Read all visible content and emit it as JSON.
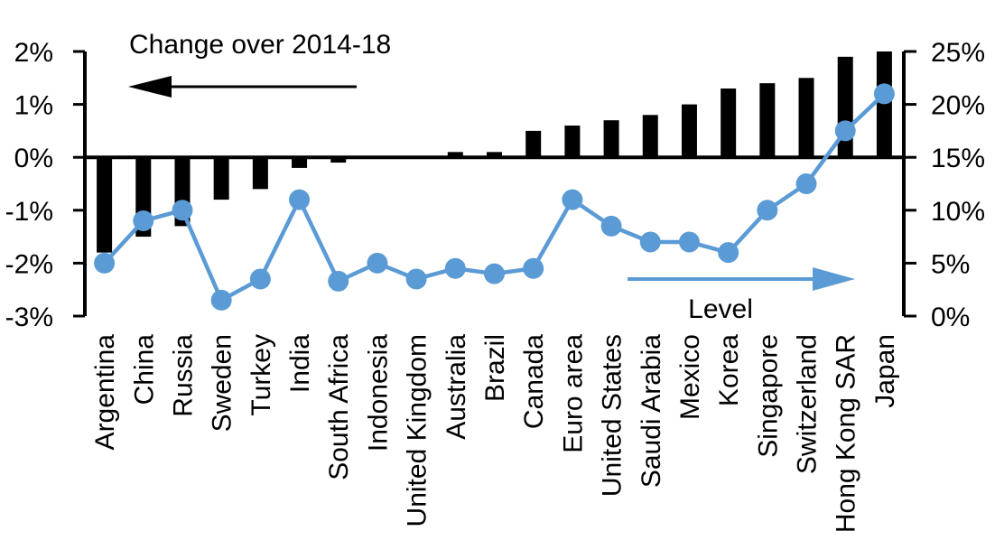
{
  "chart_data": {
    "type": "bar",
    "subtype": "combo-bar-and-line-dual-axis",
    "categories": [
      "Argentina",
      "China",
      "Russia",
      "Sweden",
      "Turkey",
      "India",
      "South Africa",
      "Indonesia",
      "United Kingdom",
      "Australia",
      "Brazil",
      "Canada",
      "Euro area",
      "United States",
      "Saudi Arabia",
      "Mexico",
      "Korea",
      "Singapore",
      "Switzerland",
      "Hong Kong SAR",
      "Japan"
    ],
    "series": [
      {
        "name": "Change over 2014-18",
        "type": "bar",
        "axis": "left",
        "color": "#000000",
        "values": [
          -1.8,
          -1.5,
          -1.3,
          -0.8,
          -0.6,
          -0.2,
          -0.1,
          0,
          0,
          0.1,
          0.1,
          0.5,
          0.6,
          0.7,
          0.8,
          1.0,
          1.3,
          1.4,
          1.5,
          1.9,
          2.0
        ]
      },
      {
        "name": "Level",
        "type": "line",
        "axis": "right",
        "color": "#5B9BD5",
        "values": [
          5,
          9,
          10,
          1.5,
          3.5,
          11,
          3.3,
          5,
          3.5,
          4.5,
          4,
          4.5,
          11,
          8.5,
          7,
          7,
          6,
          10,
          12.5,
          17.5,
          21
        ]
      }
    ],
    "left_axis": {
      "min": -3,
      "max": 2,
      "tick_values": [
        2,
        1,
        0,
        -1,
        -2,
        -3
      ],
      "tick_labels": [
        "2%",
        "1%",
        "0%",
        "-1%",
        "-2%",
        "-3%"
      ]
    },
    "right_axis": {
      "min": 0,
      "max": 25,
      "tick_values": [
        25,
        20,
        15,
        10,
        5,
        0
      ],
      "tick_labels": [
        "25%",
        "20%",
        "15%",
        "10%",
        "5%",
        "0%"
      ]
    },
    "annotations": [
      {
        "text": "Change over 2014-18",
        "arrow_direction": "left",
        "arrow_color": "#000000"
      },
      {
        "text": "Level",
        "arrow_direction": "right",
        "arrow_color": "#5B9BD5"
      }
    ],
    "grid": "off",
    "legend": "none"
  }
}
